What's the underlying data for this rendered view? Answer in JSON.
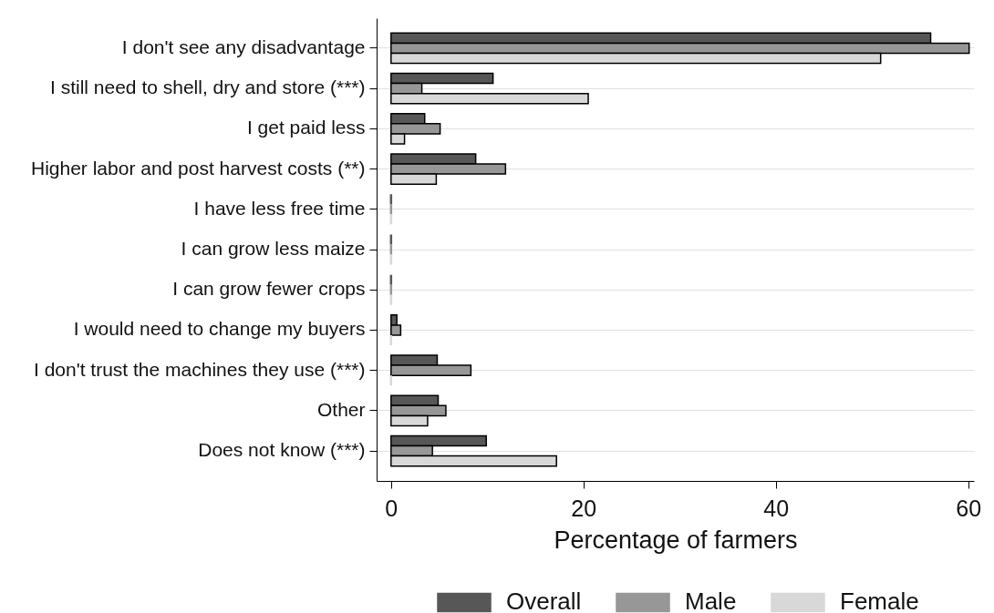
{
  "chart_data": {
    "type": "bar",
    "orientation": "horizontal",
    "categories": [
      "I don't see any disadvantage",
      "I still need to shell, dry and store (***)",
      "I get paid less",
      "Higher labor and post harvest costs (**)",
      "I have less free time",
      "I can grow less maize",
      "I can grow fewer crops",
      "I would need to change my buyers",
      "I don't trust the machines they use (***)",
      "Other",
      "Does not know (***)"
    ],
    "series": [
      {
        "name": "Overall",
        "color": "#575757",
        "values": [
          56.1,
          10.6,
          3.5,
          8.8,
          0,
          0,
          0,
          0.6,
          4.8,
          4.9,
          9.9
        ]
      },
      {
        "name": "Male",
        "color": "#979797",
        "values": [
          60.1,
          3.2,
          5.1,
          11.9,
          0,
          0,
          0,
          1.0,
          8.3,
          5.7,
          4.3
        ]
      },
      {
        "name": "Female",
        "color": "#d8d8d8",
        "values": [
          50.9,
          20.5,
          1.4,
          4.7,
          0,
          0,
          0,
          0,
          0,
          3.8,
          17.2
        ]
      }
    ],
    "xlabel": "Percentage of farmers",
    "xlim": [
      -1.5,
      60.6
    ],
    "xticks": [
      0,
      20,
      40,
      60
    ],
    "grid": "y",
    "legend": "bottom"
  }
}
